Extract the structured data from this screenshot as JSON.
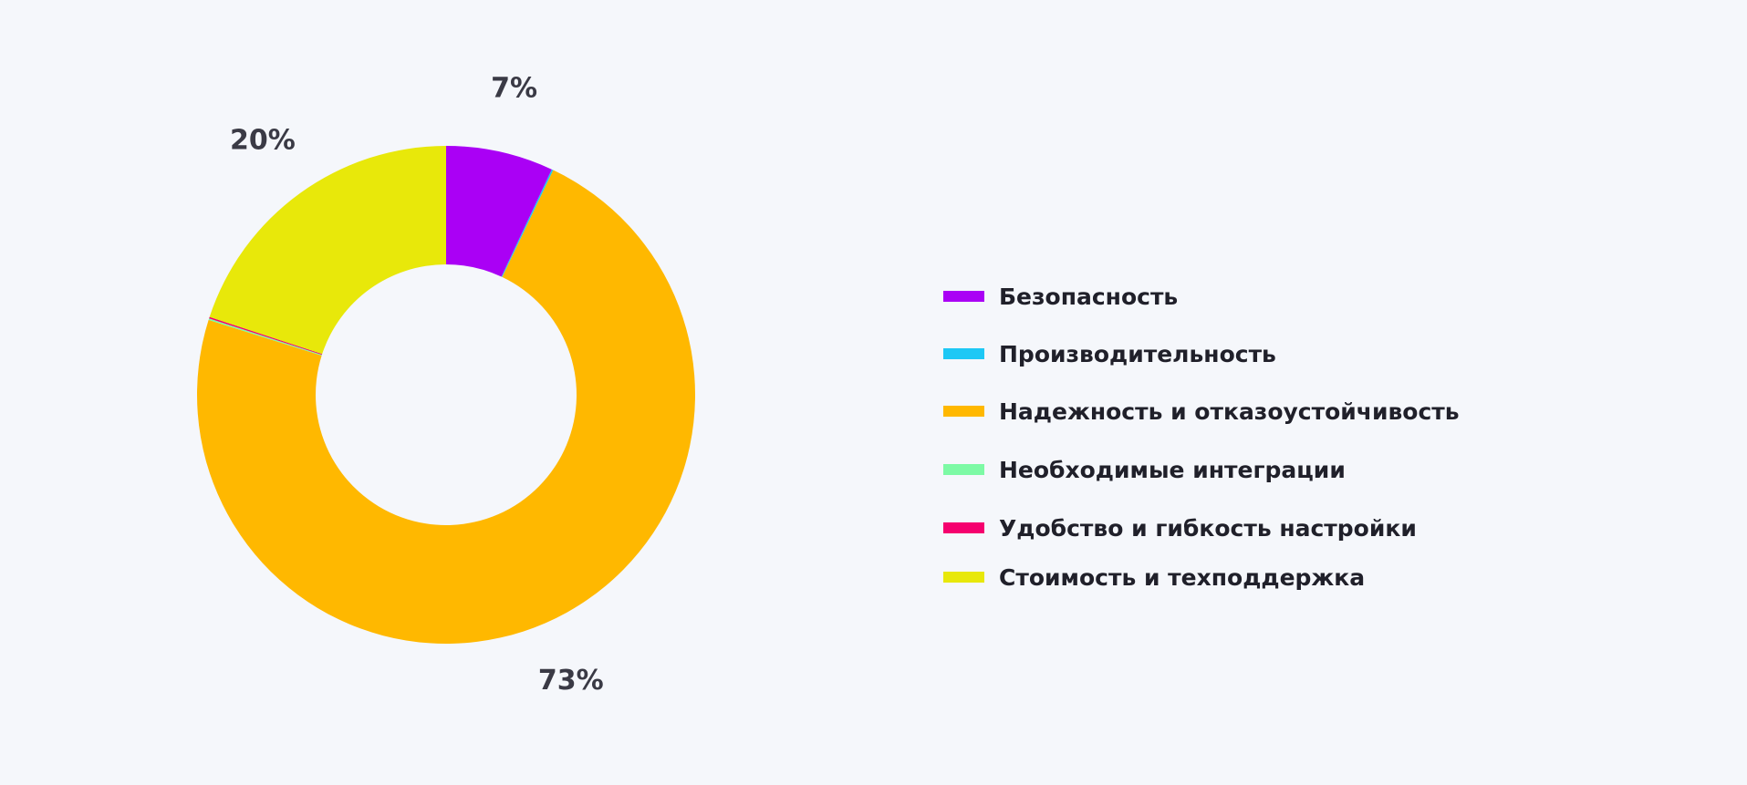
{
  "chart_data": {
    "type": "pie",
    "donut": true,
    "categories": [
      "Безопасность",
      "Производительность",
      "Надежность и отказоустойчивость",
      "Необходимые интеграции",
      "Удобство и гибкость настройки",
      "Стоимость и техподдержка"
    ],
    "values": [
      7,
      0.1,
      73,
      0.1,
      0.1,
      20
    ],
    "colors": [
      "#aa00f5",
      "#1ec8f5",
      "#ffb800",
      "#7dfaa5",
      "#f5006e",
      "#e8e80a"
    ],
    "data_labels": [
      {
        "slice": 0,
        "text": "7%"
      },
      {
        "slice": 2,
        "text": "73%"
      },
      {
        "slice": 5,
        "text": "20%"
      }
    ],
    "title": "",
    "legend_position": "right"
  },
  "legend": {
    "items": [
      {
        "label": "Безопасность",
        "color": "#aa00f5"
      },
      {
        "label": "Производительность",
        "color": "#1ec8f5"
      },
      {
        "label": "Надежность и отказоустойчивость",
        "color": "#ffb800"
      },
      {
        "label": "Необходимые интеграции",
        "color": "#7dfaa5"
      },
      {
        "label": "Удобство и гибкость настройки",
        "color": "#f5006e"
      },
      {
        "label": "Стоимость и техподдержка",
        "color": "#e8e80a"
      }
    ]
  }
}
